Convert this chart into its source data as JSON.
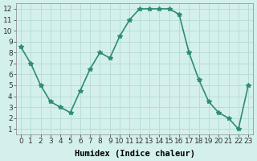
{
  "x": [
    0,
    1,
    2,
    3,
    4,
    5,
    6,
    7,
    8,
    9,
    10,
    11,
    12,
    13,
    14,
    15,
    16,
    17,
    18,
    19,
    20,
    21,
    22,
    23
  ],
  "y": [
    8.5,
    7.0,
    5.0,
    3.5,
    3.0,
    2.5,
    4.5,
    6.5,
    8.0,
    7.5,
    9.5,
    11.0,
    12.0,
    12.0,
    12.0,
    12.0,
    11.5,
    8.0,
    5.5,
    3.5,
    2.5,
    2.0,
    1.0,
    5.0
  ],
  "line_color": "#2e8b74",
  "marker": "*",
  "marker_size": 4,
  "bg_color": "#d4f0ec",
  "grid_color": "#b8ddd9",
  "xlabel": "Humidex (Indice chaleur)",
  "xlim": [
    -0.5,
    23.5
  ],
  "ylim": [
    0.5,
    12.5
  ],
  "xtick_positions": [
    0,
    1,
    2,
    3,
    4,
    5,
    6,
    7,
    8,
    9,
    10,
    11,
    12,
    13,
    14,
    15,
    16,
    17,
    18,
    19,
    20,
    21,
    22,
    23
  ],
  "xtick_labels": [
    "0",
    "1",
    "2",
    "3",
    "4",
    "5",
    "6",
    "7",
    "8",
    "9",
    "10",
    "11",
    "12",
    "13",
    "14",
    "15",
    "16",
    "17",
    "18",
    "19",
    "20",
    "21",
    "22",
    "23"
  ],
  "ytick_values": [
    1,
    2,
    3,
    4,
    5,
    6,
    7,
    8,
    9,
    10,
    11,
    12
  ],
  "xlabel_fontsize": 7.5,
  "tick_fontsize": 6.5,
  "line_width": 1.2
}
